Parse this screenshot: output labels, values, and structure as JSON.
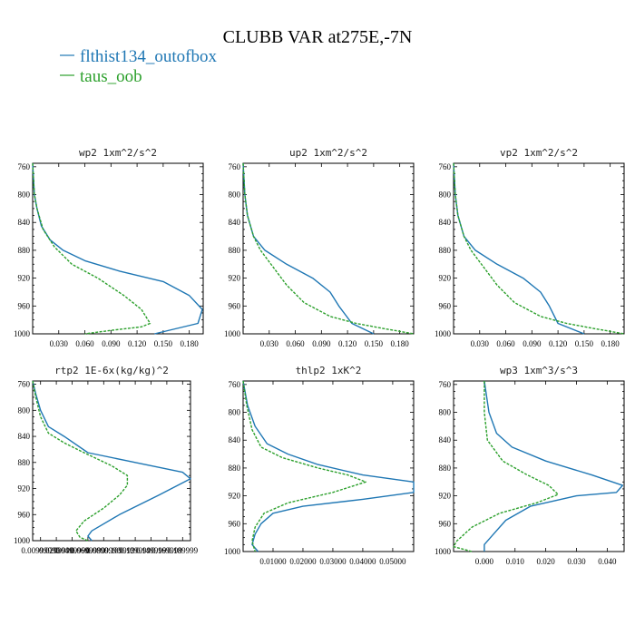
{
  "figure": {
    "title": "CLUBB VAR at275E,-7N",
    "legend": [
      {
        "label": "flthist134_outofbox",
        "color": "#1f77b4",
        "dash": "solid"
      },
      {
        "label": "taus_oob",
        "color": "#2ca02c",
        "dash": "dashed"
      }
    ]
  },
  "chart_data": [
    {
      "type": "line",
      "title": "wp2  1xm^2/s^2",
      "xticks": [
        "0.030",
        "0.060",
        "0.090",
        "0.120",
        "0.150",
        "0.180"
      ],
      "yticks": [
        "760",
        "800",
        "840",
        "880",
        "920",
        "960",
        "1000"
      ],
      "xlim": [
        0,
        0.196
      ],
      "ylim": [
        1000,
        755
      ],
      "series": [
        {
          "name": "flthist134_outofbox",
          "color": "#1f77b4",
          "dash": "solid",
          "x": [
            0.0,
            0.002,
            0.005,
            0.01,
            0.02,
            0.035,
            0.06,
            0.1,
            0.15,
            0.18,
            0.195,
            0.19,
            0.14
          ],
          "y": [
            755,
            800,
            820,
            845,
            865,
            880,
            895,
            910,
            925,
            945,
            965,
            985,
            1000
          ]
        },
        {
          "name": "taus_oob",
          "color": "#2ca02c",
          "dash": "dashed",
          "x": [
            0.0,
            0.002,
            0.005,
            0.012,
            0.025,
            0.045,
            0.075,
            0.105,
            0.125,
            0.135,
            0.125,
            0.09,
            0.06
          ],
          "y": [
            755,
            800,
            820,
            850,
            875,
            900,
            920,
            945,
            965,
            985,
            990,
            995,
            1000
          ]
        }
      ]
    },
    {
      "type": "line",
      "title": "up2  1xm^2/s^2",
      "xticks": [
        "0.030",
        "0.060",
        "0.090",
        "0.120",
        "0.150",
        "0.180"
      ],
      "yticks": [
        "760",
        "800",
        "840",
        "880",
        "920",
        "960",
        "1000"
      ],
      "xlim": [
        0,
        0.196
      ],
      "ylim": [
        1000,
        755
      ],
      "series": [
        {
          "name": "flthist134_outofbox",
          "color": "#1f77b4",
          "dash": "solid",
          "x": [
            0.0,
            0.002,
            0.005,
            0.012,
            0.025,
            0.05,
            0.08,
            0.1,
            0.11,
            0.125,
            0.15
          ],
          "y": [
            755,
            800,
            830,
            860,
            880,
            900,
            920,
            940,
            960,
            985,
            1000
          ]
        },
        {
          "name": "taus_oob",
          "color": "#2ca02c",
          "dash": "dashed",
          "x": [
            0.0,
            0.002,
            0.005,
            0.012,
            0.02,
            0.035,
            0.05,
            0.07,
            0.1,
            0.13,
            0.16,
            0.196
          ],
          "y": [
            755,
            800,
            830,
            860,
            880,
            905,
            930,
            955,
            975,
            985,
            992,
            1000
          ]
        }
      ]
    },
    {
      "type": "line",
      "title": "vp2  1xm^2/s^2",
      "xticks": [
        "0.030",
        "0.060",
        "0.090",
        "0.120",
        "0.150",
        "0.180"
      ],
      "yticks": [
        "760",
        "800",
        "840",
        "880",
        "920",
        "960",
        "1000"
      ],
      "xlim": [
        0,
        0.196
      ],
      "ylim": [
        1000,
        755
      ],
      "series": [
        {
          "name": "flthist134_outofbox",
          "color": "#1f77b4",
          "dash": "solid",
          "x": [
            0.0,
            0.002,
            0.005,
            0.012,
            0.025,
            0.05,
            0.08,
            0.1,
            0.11,
            0.12,
            0.15
          ],
          "y": [
            755,
            800,
            830,
            860,
            880,
            900,
            920,
            940,
            960,
            985,
            1000
          ]
        },
        {
          "name": "taus_oob",
          "color": "#2ca02c",
          "dash": "dashed",
          "x": [
            0.0,
            0.002,
            0.005,
            0.012,
            0.02,
            0.035,
            0.05,
            0.07,
            0.1,
            0.13,
            0.16,
            0.196
          ],
          "y": [
            755,
            800,
            830,
            860,
            880,
            905,
            930,
            955,
            975,
            985,
            992,
            1000
          ]
        }
      ]
    },
    {
      "type": "line",
      "title": "rtp2  1E-6x(kg/kg)^2",
      "xticks": [
        "0.00999990",
        "0.0299990",
        "0.0499990",
        "0.0699990",
        "0.0899990",
        "0.109999",
        "0.129999",
        "0.149999",
        "0.169999",
        "0.189999"
      ],
      "yticks": [
        "760",
        "800",
        "840",
        "880",
        "920",
        "960",
        "1000"
      ],
      "xlim": [
        0,
        0.2
      ],
      "ylim": [
        1000,
        755
      ],
      "series": [
        {
          "name": "flthist134_outofbox",
          "color": "#1f77b4",
          "dash": "solid",
          "x": [
            0.0,
            0.004,
            0.01,
            0.02,
            0.04,
            0.07,
            0.13,
            0.19,
            0.2,
            0.16,
            0.11,
            0.075,
            0.07,
            0.075
          ],
          "y": [
            755,
            775,
            800,
            825,
            840,
            865,
            880,
            895,
            905,
            930,
            960,
            985,
            993,
            1000
          ]
        },
        {
          "name": "taus_oob",
          "color": "#2ca02c",
          "dash": "dashed",
          "x": [
            0.0,
            0.004,
            0.01,
            0.02,
            0.04,
            0.065,
            0.1,
            0.12,
            0.12,
            0.11,
            0.09,
            0.065,
            0.055,
            0.06,
            0.07
          ],
          "y": [
            755,
            780,
            810,
            835,
            850,
            865,
            885,
            900,
            915,
            930,
            950,
            970,
            985,
            995,
            1000
          ]
        }
      ]
    },
    {
      "type": "line",
      "title": "thlp2  1xK^2",
      "xticks": [
        "0.01000",
        "0.02000",
        "0.03000",
        "0.04000",
        "0.05000"
      ],
      "yticks": [
        "760",
        "800",
        "840",
        "880",
        "920",
        "960",
        "1000"
      ],
      "xlim": [
        0,
        0.057
      ],
      "ylim": [
        1000,
        755
      ],
      "series": [
        {
          "name": "flthist134_outofbox",
          "color": "#1f77b4",
          "dash": "solid",
          "x": [
            0.0,
            0.0015,
            0.004,
            0.008,
            0.015,
            0.025,
            0.04,
            0.057,
            0.057,
            0.04,
            0.02,
            0.01,
            0.006,
            0.004,
            0.003,
            0.005
          ],
          "y": [
            755,
            790,
            820,
            845,
            860,
            875,
            890,
            900,
            915,
            925,
            935,
            945,
            960,
            975,
            990,
            1000
          ]
        },
        {
          "name": "taus_oob",
          "color": "#2ca02c",
          "dash": "dashed",
          "x": [
            0.0,
            0.0012,
            0.003,
            0.006,
            0.013,
            0.025,
            0.035,
            0.041,
            0.03,
            0.015,
            0.007,
            0.004,
            0.003,
            0.004
          ],
          "y": [
            755,
            790,
            825,
            850,
            865,
            880,
            890,
            900,
            915,
            930,
            945,
            965,
            985,
            1000
          ]
        }
      ]
    },
    {
      "type": "line",
      "title": "wp3  1xm^3/s^3",
      "xticks": [
        "0.000",
        "0.010",
        "0.020",
        "0.030",
        "0.040"
      ],
      "yticks": [
        "760",
        "800",
        "840",
        "880",
        "920",
        "960",
        "1000"
      ],
      "xlim": [
        -0.01,
        0.0455
      ],
      "ylim": [
        1000,
        755
      ],
      "series": [
        {
          "name": "flthist134_outofbox",
          "color": "#1f77b4",
          "dash": "solid",
          "x": [
            0.0,
            0.0015,
            0.004,
            0.009,
            0.02,
            0.035,
            0.045,
            0.043,
            0.03,
            0.015,
            0.007,
            0.003,
            0.0,
            0.0
          ],
          "y": [
            755,
            800,
            830,
            850,
            870,
            890,
            905,
            915,
            920,
            935,
            955,
            975,
            990,
            1000
          ]
        },
        {
          "name": "taus_oob",
          "color": "#2ca02c",
          "dash": "dashed",
          "x": [
            0.0,
            0.0,
            0.001,
            0.006,
            0.014,
            0.021,
            0.024,
            0.017,
            0.005,
            -0.004,
            -0.009,
            -0.01,
            -0.004
          ],
          "y": [
            755,
            800,
            840,
            870,
            890,
            905,
            918,
            930,
            945,
            965,
            985,
            993,
            1000
          ]
        }
      ]
    }
  ]
}
